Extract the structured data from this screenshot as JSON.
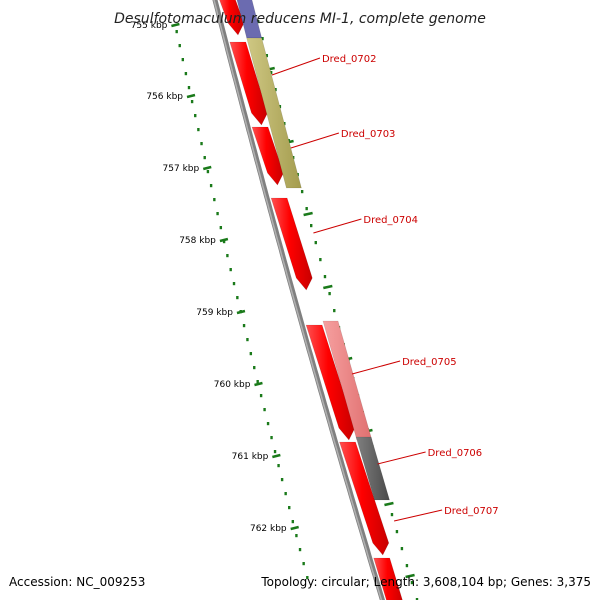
{
  "title": "Desulfotomaculum reducens MI-1, complete genome",
  "footer": {
    "accession": "Accession: NC_009253",
    "stats": "Topology: circular; Length: 3,608,104 bp; Genes: 3,375"
  },
  "ticks": [
    {
      "label": "755 kbp"
    },
    {
      "label": "756 kbp"
    },
    {
      "label": "757 kbp"
    },
    {
      "label": "758 kbp"
    },
    {
      "label": "759 kbp"
    },
    {
      "label": "760 kbp"
    },
    {
      "label": "761 kbp"
    },
    {
      "label": "762 kbp"
    }
  ],
  "genes": [
    {
      "label": "Dred_0702"
    },
    {
      "label": "Dred_0703"
    },
    {
      "label": "Dred_0704"
    },
    {
      "label": "Dred_0705"
    },
    {
      "label": "Dred_0706"
    },
    {
      "label": "Dred_0707"
    }
  ],
  "colors": {
    "cds": "#ff0000",
    "backbone": "#808080",
    "tick": "#1a7a1a",
    "gene_label": "#cc0000",
    "feature_olive": "#b5ad5e",
    "feature_pink": "#f08080",
    "feature_gray": "#5a5a5a",
    "feature_blue": "#6b6bb0"
  }
}
